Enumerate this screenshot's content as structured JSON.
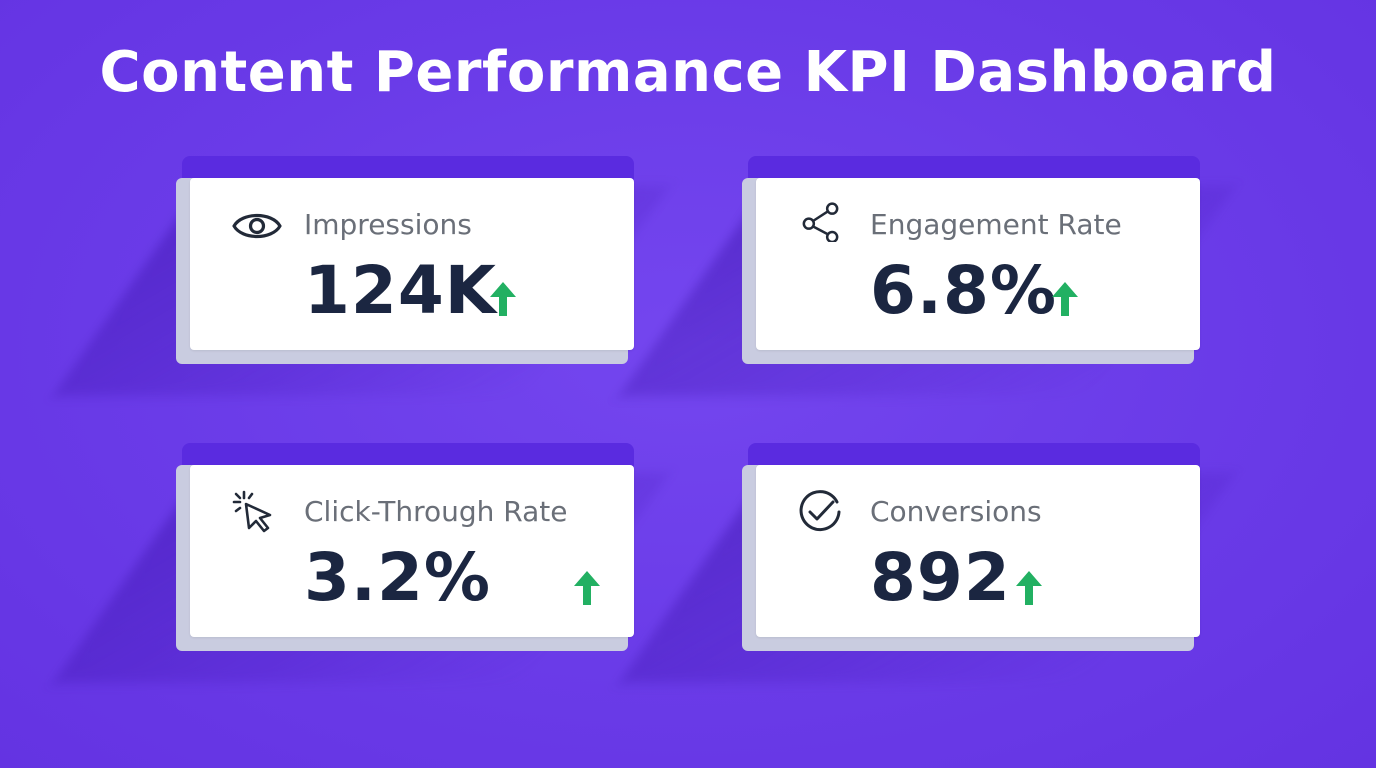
{
  "dashboard": {
    "title": "Content Performance KPI Dashboard",
    "colors": {
      "background": "#6a3be8",
      "card_top": "#5a2be0",
      "card_face": "#ffffff",
      "value_text": "#1b2641",
      "label_text": "#6a6f78",
      "trend_up": "#22b062"
    },
    "cards": [
      {
        "label": "Impressions",
        "value": "124K",
        "icon": "eye-icon",
        "trend": "up"
      },
      {
        "label": "Engagement Rate",
        "value": "6.8%",
        "icon": "share-icon",
        "trend": "up"
      },
      {
        "label": "Click-Through Rate",
        "value": "3.2%",
        "icon": "cursor-click-icon",
        "trend": "up"
      },
      {
        "label": "Conversions",
        "value": "892",
        "icon": "check-circle-icon",
        "trend": "up"
      }
    ]
  }
}
